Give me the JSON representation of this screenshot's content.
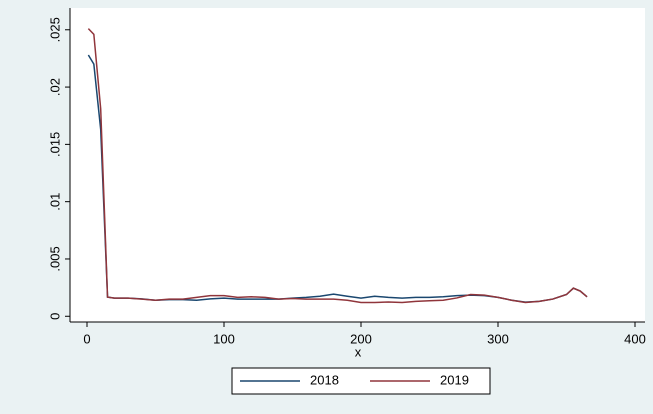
{
  "chart_data": {
    "type": "line",
    "x_label": "x",
    "x": [
      1,
      5,
      10,
      15,
      20,
      30,
      40,
      50,
      60,
      70,
      80,
      90,
      100,
      110,
      120,
      130,
      140,
      150,
      160,
      170,
      180,
      190,
      200,
      210,
      220,
      230,
      240,
      250,
      260,
      270,
      280,
      290,
      300,
      310,
      320,
      330,
      340,
      350,
      355,
      360,
      365
    ],
    "series": [
      {
        "name": "2018",
        "color": "#1a476f",
        "values": [
          0.0228,
          0.022,
          0.0163,
          0.00167,
          0.00158,
          0.00158,
          0.00152,
          0.0014,
          0.00145,
          0.00145,
          0.0014,
          0.00152,
          0.00158,
          0.0015,
          0.0015,
          0.0015,
          0.0015,
          0.00158,
          0.00165,
          0.00175,
          0.00193,
          0.00175,
          0.00158,
          0.00175,
          0.00165,
          0.00158,
          0.00165,
          0.00165,
          0.0017,
          0.0018,
          0.00185,
          0.0018,
          0.00165,
          0.0014,
          0.00123,
          0.0013,
          0.0015,
          0.0019,
          0.00245,
          0.0022,
          0.0017
        ]
      },
      {
        "name": "2019",
        "color": "#90353b",
        "values": [
          0.0251,
          0.0246,
          0.0181,
          0.00167,
          0.00158,
          0.00158,
          0.0015,
          0.0014,
          0.0015,
          0.0015,
          0.00165,
          0.0018,
          0.0018,
          0.00165,
          0.0017,
          0.00165,
          0.0015,
          0.00155,
          0.0015,
          0.0015,
          0.0015,
          0.0014,
          0.0012,
          0.0012,
          0.00125,
          0.0012,
          0.0013,
          0.00135,
          0.0014,
          0.0016,
          0.0019,
          0.00185,
          0.00165,
          0.0014,
          0.0012,
          0.0013,
          0.0015,
          0.0019,
          0.00245,
          0.0022,
          0.0017
        ]
      }
    ],
    "xlim": [
      -12.4,
      407.3
    ],
    "xticks": [
      0,
      100,
      200,
      300,
      400
    ],
    "ylim": [
      -0.0005,
      0.0269
    ],
    "yticks": [
      0,
      {
        "value": 0.005,
        "label": ".005"
      },
      {
        "value": 0.01,
        "label": ".01"
      },
      {
        "value": 0.015,
        "label": ".015"
      },
      {
        "value": 0.02,
        "label": ".02"
      },
      {
        "value": 0.025,
        "label": ".025"
      }
    ],
    "legend": "bottom"
  }
}
